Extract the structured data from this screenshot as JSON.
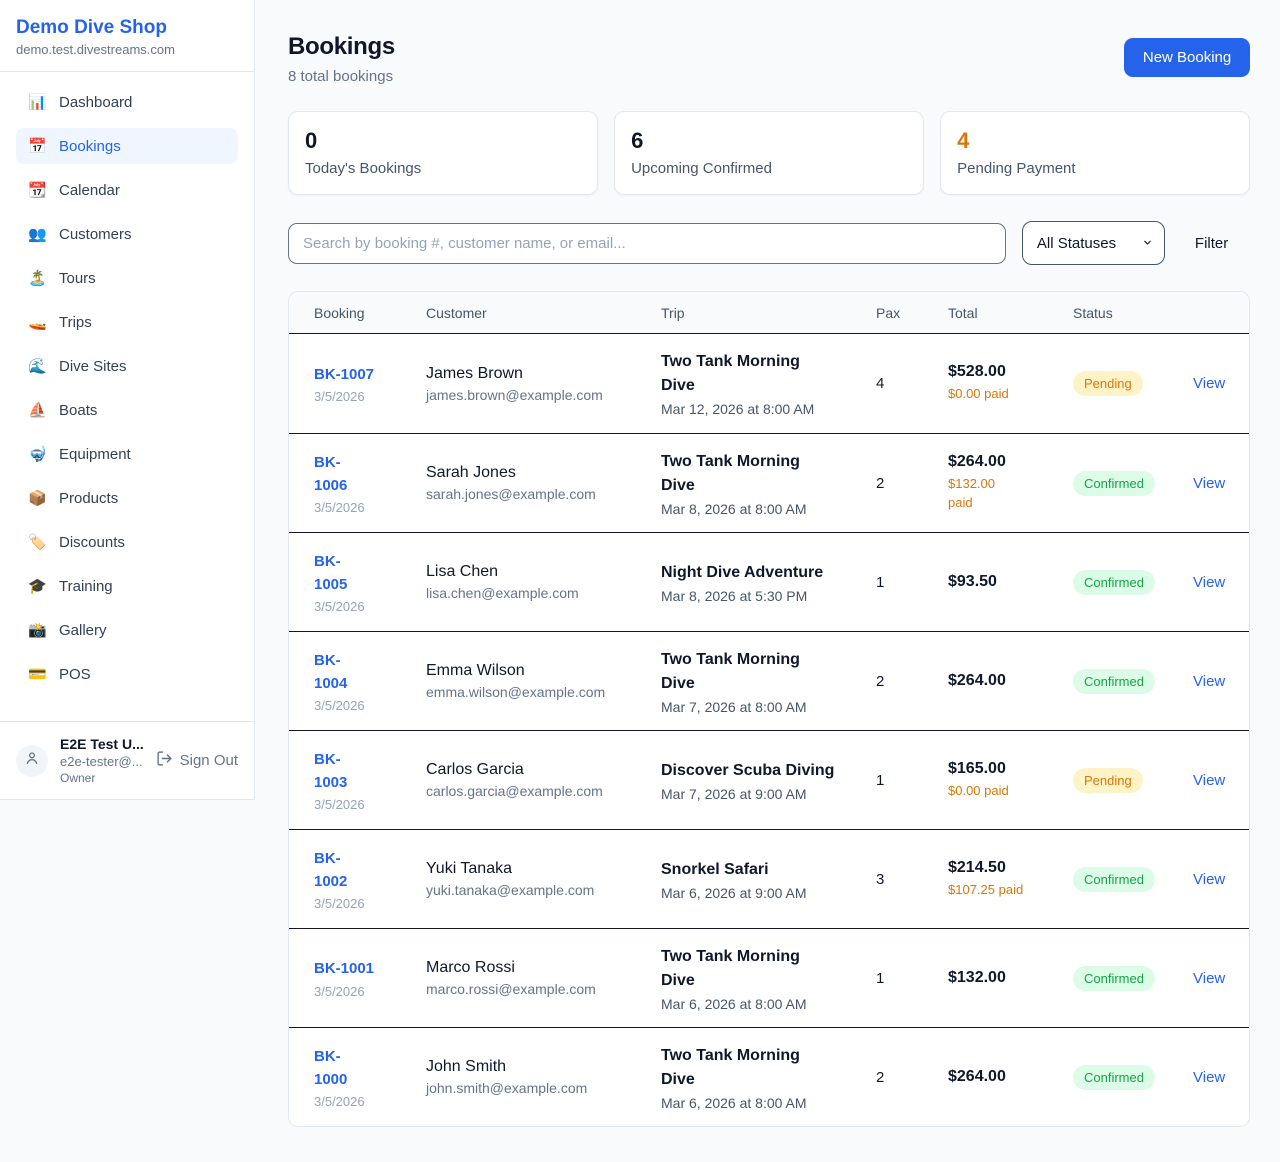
{
  "sidebar": {
    "brand": {
      "name": "Demo Dive Shop",
      "domain": "demo.test.divestreams.com"
    },
    "nav": [
      {
        "name": "dashboard",
        "icon_name": "bar-chart-icon",
        "icon": "📊",
        "label": "Dashboard",
        "active": false
      },
      {
        "name": "bookings",
        "icon_name": "calendar-icon",
        "icon": "📅",
        "label": "Bookings",
        "active": true
      },
      {
        "name": "calendar",
        "icon_name": "tear-calendar-icon",
        "icon": "📆",
        "label": "Calendar",
        "active": false
      },
      {
        "name": "customers",
        "icon_name": "people-icon",
        "icon": "👥",
        "label": "Customers",
        "active": false
      },
      {
        "name": "tours",
        "icon_name": "island-icon",
        "icon": "🏝️",
        "label": "Tours",
        "active": false
      },
      {
        "name": "trips",
        "icon_name": "speedboat-icon",
        "icon": "🚤",
        "label": "Trips",
        "active": false
      },
      {
        "name": "dive-sites",
        "icon_name": "wave-icon",
        "icon": "🌊",
        "label": "Dive Sites",
        "active": false
      },
      {
        "name": "boats",
        "icon_name": "sailboat-icon",
        "icon": "⛵",
        "label": "Boats",
        "active": false
      },
      {
        "name": "equipment",
        "icon_name": "diving-mask-icon",
        "icon": "🤿",
        "label": "Equipment",
        "active": false
      },
      {
        "name": "products",
        "icon_name": "package-icon",
        "icon": "📦",
        "label": "Products",
        "active": false
      },
      {
        "name": "discounts",
        "icon_name": "tag-icon",
        "icon": "🏷️",
        "label": "Discounts",
        "active": false
      },
      {
        "name": "training",
        "icon_name": "graduation-cap-icon",
        "icon": "🎓",
        "label": "Training",
        "active": false
      },
      {
        "name": "gallery",
        "icon_name": "camera-icon",
        "icon": "📸",
        "label": "Gallery",
        "active": false
      },
      {
        "name": "pos",
        "icon_name": "credit-card-icon",
        "icon": "💳",
        "label": "POS",
        "active": false
      }
    ],
    "user": {
      "name": "E2E Test U...",
      "email": "e2e-tester@...",
      "role": "Owner",
      "sign_out_label": "Sign Out"
    }
  },
  "header": {
    "title": "Bookings",
    "subtitle": "8 total bookings",
    "new_booking_label": "New Booking"
  },
  "stats": [
    {
      "value": "0",
      "label": "Today's Bookings",
      "value_color": "#0f172a"
    },
    {
      "value": "6",
      "label": "Upcoming Confirmed",
      "value_color": "#0f172a"
    },
    {
      "value": "4",
      "label": "Pending Payment",
      "value_color": "#d97706"
    }
  ],
  "controls": {
    "search_placeholder": "Search by booking #, customer name, or email...",
    "search_value": "",
    "status_selected": "All Statuses",
    "filter_label": "Filter"
  },
  "table": {
    "columns": [
      "Booking",
      "Customer",
      "Trip",
      "Pax",
      "Total",
      "Status"
    ],
    "action_label": "View",
    "rows": [
      {
        "id": "BK-1007",
        "id_display": "BK-1007",
        "date": "3/5/2026",
        "customer": "James Brown",
        "email": "james.brown@example.com",
        "trip": "Two Tank Morning Dive",
        "trip_datetime": "Mar 12, 2026 at 8:00 AM",
        "pax": "4",
        "total": "$528.00",
        "paid": "$0.00 paid",
        "status": "Pending"
      },
      {
        "id": "BK-1006",
        "id_display": "BK-\n1006",
        "date": "3/5/2026",
        "customer": "Sarah Jones",
        "email": "sarah.jones@example.com",
        "trip": "Two Tank Morning Dive",
        "trip_datetime": "Mar 8, 2026 at 8:00 AM",
        "pax": "2",
        "total": "$264.00",
        "paid": "$132.00\npaid",
        "status": "Confirmed"
      },
      {
        "id": "BK-1005",
        "id_display": "BK-\n1005",
        "date": "3/5/2026",
        "customer": "Lisa Chen",
        "email": "lisa.chen@example.com",
        "trip": "Night Dive Adventure",
        "trip_datetime": "Mar 8, 2026 at 5:30 PM",
        "pax": "1",
        "total": "$93.50",
        "paid": "",
        "status": "Confirmed"
      },
      {
        "id": "BK-1004",
        "id_display": "BK-\n1004",
        "date": "3/5/2026",
        "customer": "Emma Wilson",
        "email": "emma.wilson@example.com",
        "trip": "Two Tank Morning Dive",
        "trip_datetime": "Mar 7, 2026 at 8:00 AM",
        "pax": "2",
        "total": "$264.00",
        "paid": "",
        "status": "Confirmed"
      },
      {
        "id": "BK-1003",
        "id_display": "BK-\n1003",
        "date": "3/5/2026",
        "customer": "Carlos Garcia",
        "email": "carlos.garcia@example.com",
        "trip": "Discover Scuba Diving",
        "trip_datetime": "Mar 7, 2026 at 9:00 AM",
        "pax": "1",
        "total": "$165.00",
        "paid": "$0.00 paid",
        "status": "Pending"
      },
      {
        "id": "BK-1002",
        "id_display": "BK-\n1002",
        "date": "3/5/2026",
        "customer": "Yuki Tanaka",
        "email": "yuki.tanaka@example.com",
        "trip": "Snorkel Safari",
        "trip_datetime": "Mar 6, 2026 at 9:00 AM",
        "pax": "3",
        "total": "$214.50",
        "paid": "$107.25 paid",
        "status": "Confirmed"
      },
      {
        "id": "BK-1001",
        "id_display": "BK-1001",
        "date": "3/5/2026",
        "customer": "Marco Rossi",
        "email": "marco.rossi@example.com",
        "trip": "Two Tank Morning Dive",
        "trip_datetime": "Mar 6, 2026 at 8:00 AM",
        "pax": "1",
        "total": "$132.00",
        "paid": "",
        "status": "Confirmed"
      },
      {
        "id": "BK-1000",
        "id_display": "BK-\n1000",
        "date": "3/5/2026",
        "customer": "John Smith",
        "email": "john.smith@example.com",
        "trip": "Two Tank Morning Dive",
        "trip_datetime": "Mar 6, 2026 at 8:00 AM",
        "pax": "2",
        "total": "$264.00",
        "paid": "",
        "status": "Confirmed"
      }
    ]
  },
  "colors": {
    "accent": "#2563eb",
    "pending_text": "#d97706",
    "pending_bg": "#fef3c7",
    "confirmed_text": "#16a34a",
    "confirmed_bg": "#dcfce7"
  }
}
